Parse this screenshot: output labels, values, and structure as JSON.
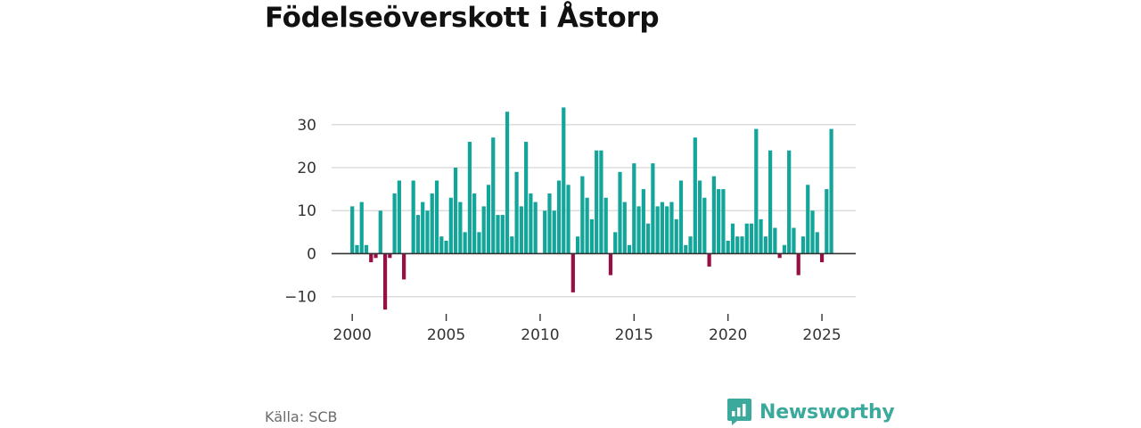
{
  "title": "Födelseöverskott i Åstorp",
  "source": "Källa: SCB",
  "brand": {
    "name": "Newsworthy",
    "icon": "newsworthy-logo-icon"
  },
  "colors": {
    "positive": "#13a59a",
    "negative": "#960f45",
    "grid": "#dddddd",
    "zero": "#333333",
    "text": "#333333",
    "brand": "#3ba99c"
  },
  "chart_data": {
    "type": "bar",
    "title": "Födelseöverskott i Åstorp",
    "xlabel": "",
    "ylabel": "",
    "x_ticks": [
      2000,
      2005,
      2010,
      2015,
      2020,
      2025
    ],
    "y_ticks": [
      -10,
      0,
      10,
      20,
      30
    ],
    "y_tick_labels": [
      "−10",
      "0",
      "10",
      "20",
      "30"
    ],
    "ylim": [
      -14,
      37
    ],
    "xlim": [
      1998.9,
      2026.8
    ],
    "start_year": 2000,
    "periods_per_year": 4,
    "values": [
      11,
      2,
      12,
      2,
      -2,
      -1,
      10,
      -13,
      -1,
      14,
      17,
      -6,
      0,
      17,
      9,
      12,
      10,
      14,
      17,
      4,
      3,
      13,
      20,
      12,
      5,
      26,
      14,
      5,
      11,
      16,
      27,
      9,
      9,
      33,
      4,
      19,
      11,
      26,
      14,
      12,
      0,
      10,
      14,
      10,
      17,
      34,
      16,
      -9,
      4,
      18,
      13,
      8,
      24,
      24,
      13,
      -5,
      5,
      19,
      12,
      2,
      21,
      11,
      15,
      7,
      21,
      11,
      12,
      11,
      12,
      8,
      17,
      2,
      4,
      27,
      17,
      13,
      -3,
      18,
      15,
      15,
      3,
      7,
      4,
      4,
      7,
      7,
      29,
      8,
      4,
      24,
      6,
      -1,
      2,
      24,
      6,
      -5,
      4,
      16,
      10,
      5,
      -2,
      15,
      29
    ]
  }
}
